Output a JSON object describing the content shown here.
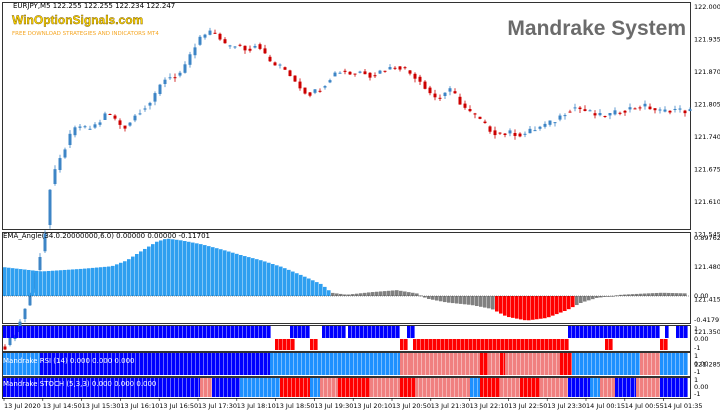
{
  "main_header": "EURJPY,M5  122.255 122.255 122.234 122.247",
  "watermark": {
    "brand": "WinOptionSignals.com",
    "tagline": "FREE DOWNLOAD STRATEGIES AND INDICATORS MT4"
  },
  "system_title": "Mandrake System",
  "price_axis": [
    "122.000",
    "121.935",
    "121.870",
    "121.805",
    "121.740",
    "121.675",
    "121.610",
    "121.545",
    "121.480",
    "121.415",
    "121.350",
    "121.285"
  ],
  "ema_header": "EMA_Angle(34.0.20000000,6.0) 0.00000 0.00000 -0.11701",
  "ema_axis": [
    "0.89762",
    "0.00",
    "-0.41791"
  ],
  "ind1_axis": [
    "1",
    "0.00",
    "-1"
  ],
  "ind2_label": "Mandrake RSI (14) 0.000 0.000 0.000",
  "ind2_axis": [
    "1",
    "0.00",
    "-1"
  ],
  "ind3_label": "Mandrake STOCH (5,3,3) 0.000 0.000 0.000",
  "ind3_axis": [
    "1",
    "0.00",
    "-1"
  ],
  "time_axis": [
    "13 Jul 2020",
    "13 Jul 14:50",
    "13 Jul 15:30",
    "13 Jul 16:10",
    "13 Jul 16:50",
    "13 Jul 17:30",
    "13 Jul 18:10",
    "13 Jul 18:50",
    "13 Jul 19:30",
    "13 Jul 20:10",
    "13 Jul 20:50",
    "13 Jul 21:30",
    "13 Jul 22:10",
    "13 Jul 22:50",
    "13 Jul 23:30",
    "14 Jul 00:15",
    "14 Jul 00:55",
    "14 Jul 01:35"
  ],
  "colors": {
    "bull": "#3d85c6",
    "bear": "#cc0000",
    "ema_up": "#2f9ff0",
    "ema_down": "#ff0000",
    "ema_flat": "#808080",
    "strong_up": "#0000ff",
    "weak_up": "#1e90ff",
    "weak_down": "#f08080",
    "strong_down": "#ff0000",
    "brand": "#ffd700",
    "tagline": "#f5a623",
    "title": "#6b6b6b"
  }
}
